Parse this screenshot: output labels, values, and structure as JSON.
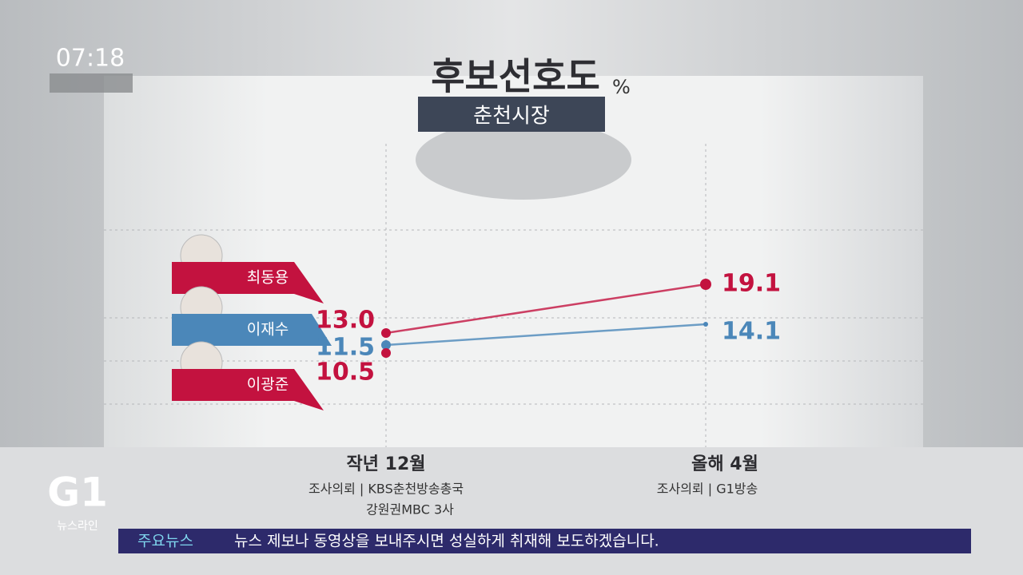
{
  "clock": "07:18",
  "chart_data": {
    "type": "line",
    "title": "후보선호도",
    "unit": "%",
    "subtitle": "춘천시장",
    "categories": [
      "작년 12월",
      "올해 4월"
    ],
    "series": [
      {
        "name": "최동용",
        "color": "#c3123f",
        "values": [
          13.0,
          19.1
        ],
        "value_labels": [
          "13.0",
          "19.1"
        ]
      },
      {
        "name": "이재수",
        "color": "#4b87b9",
        "values": [
          11.5,
          14.1
        ],
        "value_labels": [
          "11.5",
          "14.1"
        ]
      },
      {
        "name": "이광준",
        "color": "#c3123f",
        "values": [
          10.5,
          null
        ],
        "value_labels": [
          "10.5",
          null
        ]
      }
    ],
    "grid": true
  },
  "sources": [
    [
      "조사의뢰 | KBS춘천방송총국",
      "강원권MBC 3사"
    ],
    [
      "조사의뢰 | G1방송"
    ]
  ],
  "logo": {
    "mark": "G1",
    "label": "뉴스라인"
  },
  "ticker": {
    "tag": "주요뉴스",
    "text": "뉴스 제보나 동영상을 보내주시면 성실하게 취재해 보도하겠습니다."
  }
}
